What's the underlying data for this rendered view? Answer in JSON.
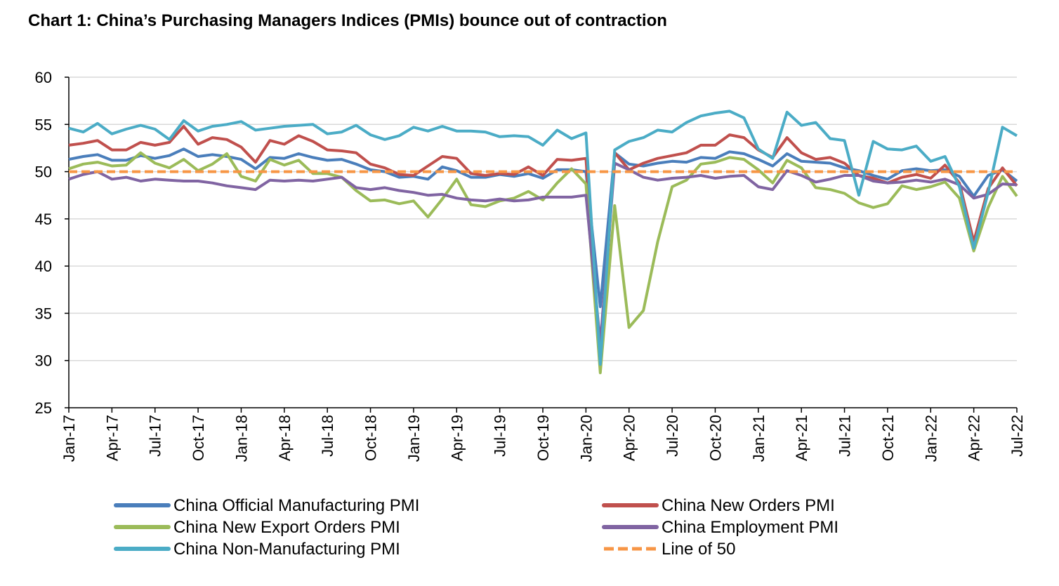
{
  "chart_data": {
    "type": "line",
    "title": "Chart 1: China’s Purchasing Managers Indices (PMIs) bounce out of contraction",
    "ylim": [
      25,
      60
    ],
    "y_ticks": [
      "60",
      "55",
      "50",
      "45",
      "40",
      "35",
      "30",
      "25"
    ],
    "x_tick_labels": [
      "Jan-17",
      "Apr-17",
      "Jul-17",
      "Oct-17",
      "Jan-18",
      "Apr-18",
      "Jul-18",
      "Oct-18",
      "Jan-19",
      "Apr-19",
      "Jul-19",
      "Oct-19",
      "Jan-20",
      "Apr-20",
      "Jul-20",
      "Oct-20",
      "Jan-21",
      "Apr-21",
      "Jul-21",
      "Oct-21",
      "Jan-22",
      "Apr-22",
      "Jul-22"
    ],
    "x_tick_months": [
      0,
      3,
      6,
      9,
      12,
      15,
      18,
      21,
      24,
      27,
      30,
      33,
      36,
      39,
      42,
      45,
      48,
      51,
      54,
      57,
      60,
      63,
      66
    ],
    "n_months": 67,
    "grid": true,
    "legend_position": "bottom",
    "series": [
      {
        "name": "China Official Manufacturing PMI",
        "color": "#4a7ebb",
        "dash": "none",
        "values": [
          51.3,
          51.6,
          51.8,
          51.2,
          51.2,
          51.7,
          51.4,
          51.7,
          52.4,
          51.6,
          51.8,
          51.6,
          51.3,
          50.3,
          51.5,
          51.4,
          51.9,
          51.5,
          51.2,
          51.3,
          50.8,
          50.2,
          50.0,
          49.4,
          49.5,
          49.2,
          50.5,
          50.1,
          49.4,
          49.4,
          49.7,
          49.5,
          49.8,
          49.3,
          50.2,
          50.2,
          50.0,
          35.7,
          52.0,
          50.8,
          50.6,
          50.9,
          51.1,
          51.0,
          51.5,
          51.4,
          52.1,
          51.9,
          51.3,
          50.6,
          51.9,
          51.1,
          51.0,
          50.9,
          50.4,
          50.1,
          49.6,
          49.2,
          50.1,
          50.3,
          50.1,
          50.2,
          49.5,
          47.4,
          49.6,
          50.2,
          49.0
        ]
      },
      {
        "name": "China New Orders PMI",
        "color": "#c0504d",
        "dash": "none",
        "values": [
          52.8,
          53.0,
          53.3,
          52.3,
          52.3,
          53.1,
          52.8,
          53.1,
          54.8,
          52.9,
          53.6,
          53.4,
          52.6,
          51.0,
          53.3,
          52.9,
          53.8,
          53.2,
          52.3,
          52.2,
          52.0,
          50.8,
          50.4,
          49.7,
          49.6,
          50.6,
          51.6,
          51.4,
          49.8,
          49.6,
          49.8,
          49.7,
          50.5,
          49.6,
          51.3,
          51.2,
          51.4,
          29.3,
          52.0,
          50.2,
          50.9,
          51.4,
          51.7,
          52.0,
          52.8,
          52.8,
          53.9,
          53.6,
          52.3,
          51.5,
          53.6,
          52.0,
          51.3,
          51.5,
          50.9,
          49.6,
          49.3,
          48.8,
          49.4,
          49.7,
          49.3,
          50.7,
          48.8,
          42.6,
          48.2,
          50.4,
          48.5
        ]
      },
      {
        "name": "China New Export Orders PMI",
        "color": "#9bbb59",
        "dash": "none",
        "values": [
          50.3,
          50.8,
          51.0,
          50.6,
          50.7,
          52.0,
          50.9,
          50.4,
          51.3,
          50.1,
          50.8,
          51.9,
          49.5,
          49.0,
          51.3,
          50.7,
          51.2,
          49.8,
          49.8,
          49.4,
          48.0,
          46.9,
          47.0,
          46.6,
          46.9,
          45.2,
          47.1,
          49.2,
          46.5,
          46.3,
          46.9,
          47.2,
          47.9,
          47.0,
          48.8,
          50.3,
          48.7,
          28.7,
          46.4,
          33.5,
          35.3,
          42.6,
          48.4,
          49.1,
          50.8,
          51.0,
          51.5,
          51.3,
          50.2,
          48.8,
          51.2,
          50.4,
          48.3,
          48.1,
          47.7,
          46.7,
          46.2,
          46.6,
          48.5,
          48.1,
          48.4,
          48.9,
          47.2,
          41.6,
          46.2,
          49.5,
          47.4
        ]
      },
      {
        "name": "China Employment PMI",
        "color": "#8064a2",
        "dash": "none",
        "values": [
          49.2,
          49.7,
          50.0,
          49.2,
          49.4,
          49.0,
          49.2,
          49.1,
          49.0,
          49.0,
          48.8,
          48.5,
          48.3,
          48.1,
          49.1,
          49.0,
          49.1,
          49.0,
          49.2,
          49.4,
          48.3,
          48.1,
          48.3,
          48.0,
          47.8,
          47.5,
          47.6,
          47.2,
          47.0,
          46.9,
          47.1,
          46.9,
          47.0,
          47.3,
          47.3,
          47.3,
          47.5,
          31.8,
          50.9,
          50.2,
          49.4,
          49.1,
          49.3,
          49.4,
          49.6,
          49.3,
          49.5,
          49.6,
          48.4,
          48.1,
          50.1,
          49.6,
          48.9,
          49.2,
          49.6,
          49.6,
          49.0,
          48.8,
          48.9,
          49.1,
          48.9,
          49.2,
          48.6,
          47.2,
          47.6,
          48.7,
          48.6
        ]
      },
      {
        "name": "China Non-Manufacturing PMI",
        "color": "#4bacc6",
        "dash": "none",
        "values": [
          54.6,
          54.2,
          55.1,
          54.0,
          54.5,
          54.9,
          54.5,
          53.4,
          55.4,
          54.3,
          54.8,
          55.0,
          55.3,
          54.4,
          54.6,
          54.8,
          54.9,
          55.0,
          54.0,
          54.2,
          54.9,
          53.9,
          53.4,
          53.8,
          54.7,
          54.3,
          54.8,
          54.3,
          54.3,
          54.2,
          53.7,
          53.8,
          53.7,
          52.8,
          54.4,
          53.5,
          54.1,
          29.6,
          52.3,
          53.2,
          53.6,
          54.4,
          54.2,
          55.2,
          55.9,
          56.2,
          56.4,
          55.7,
          52.4,
          51.4,
          56.3,
          54.9,
          55.2,
          53.5,
          53.3,
          47.5,
          53.2,
          52.4,
          52.3,
          52.7,
          51.1,
          51.6,
          48.4,
          41.9,
          47.8,
          54.7,
          53.8
        ]
      },
      {
        "name": "Line of 50",
        "color": "#f79646",
        "dash": "dashed",
        "values": [
          50,
          50,
          50,
          50,
          50,
          50,
          50,
          50,
          50,
          50,
          50,
          50,
          50,
          50,
          50,
          50,
          50,
          50,
          50,
          50,
          50,
          50,
          50,
          50,
          50,
          50,
          50,
          50,
          50,
          50,
          50,
          50,
          50,
          50,
          50,
          50,
          50,
          50,
          50,
          50,
          50,
          50,
          50,
          50,
          50,
          50,
          50,
          50,
          50,
          50,
          50,
          50,
          50,
          50,
          50,
          50,
          50,
          50,
          50,
          50,
          50,
          50,
          50,
          50,
          50,
          50,
          50
        ]
      }
    ]
  }
}
